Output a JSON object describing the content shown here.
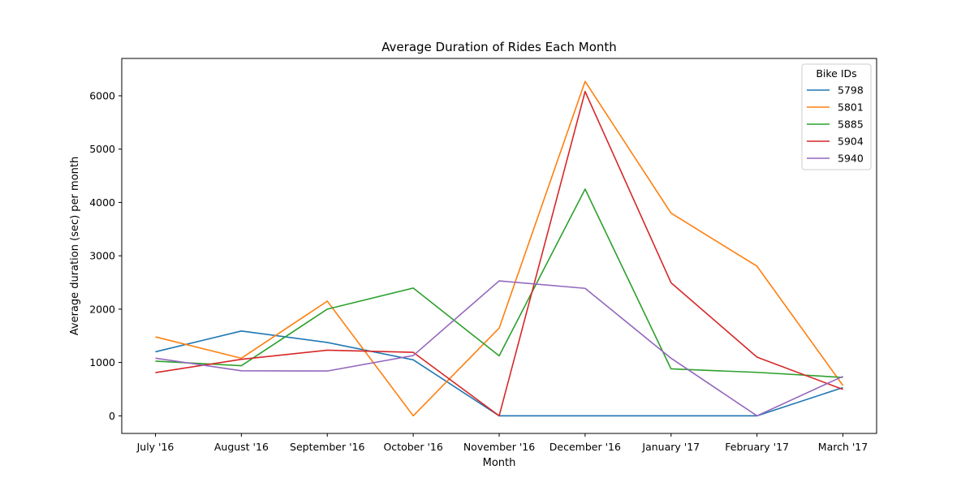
{
  "chart_data": {
    "type": "line",
    "title": "Average Duration of Rides Each Month",
    "xlabel": "Month",
    "ylabel": "Average duration (sec) per month",
    "categories": [
      "July '16",
      "August '16",
      "September '16",
      "October '16",
      "November '16",
      "December '16",
      "January '17",
      "February '17",
      "March '17"
    ],
    "ylim": [
      -330,
      6700
    ],
    "yticks": [
      0,
      1000,
      2000,
      3000,
      4000,
      5000,
      6000
    ],
    "legend": {
      "title": "Bike IDs",
      "position": "upper right"
    },
    "series": [
      {
        "name": "5798",
        "color": "#1f77b4",
        "values": [
          1200,
          1590,
          1375,
          1050,
          0,
          0,
          0,
          0,
          530
        ]
      },
      {
        "name": "5801",
        "color": "#ff7f0e",
        "values": [
          1480,
          1080,
          2150,
          0,
          1645,
          6270,
          3800,
          2805,
          570
        ]
      },
      {
        "name": "5885",
        "color": "#2ca02c",
        "values": [
          1025,
          940,
          2000,
          2395,
          1125,
          4250,
          880,
          815,
          720
        ]
      },
      {
        "name": "5904",
        "color": "#d62728",
        "values": [
          810,
          1060,
          1230,
          1190,
          0,
          6080,
          2495,
          1100,
          495
        ]
      },
      {
        "name": "5940",
        "color": "#9467bd",
        "values": [
          1080,
          845,
          840,
          1130,
          2530,
          2390,
          1080,
          0,
          740
        ]
      }
    ]
  }
}
